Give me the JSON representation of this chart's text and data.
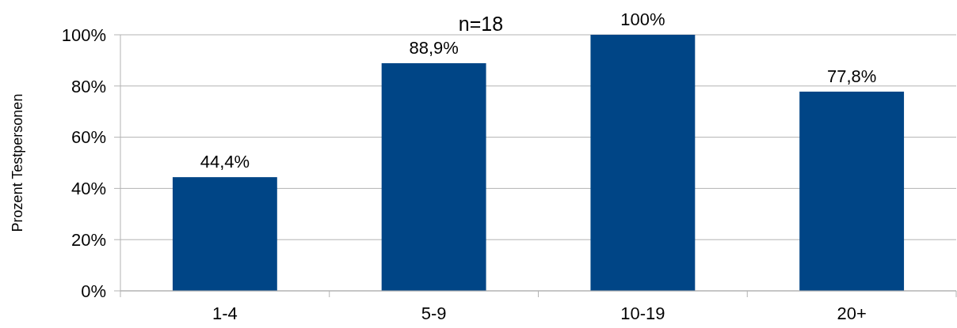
{
  "chart_data": {
    "type": "bar",
    "title": "n=18",
    "ylabel": "Prozent Testpersonen",
    "categories": [
      "1-4",
      "5-9",
      "10-19",
      "20+"
    ],
    "values": [
      44.4,
      88.9,
      100,
      77.8
    ],
    "value_labels": [
      "44,4%",
      "88,9%",
      "100%",
      "77,8%"
    ],
    "color": "#004586",
    "ylim": [
      0,
      100
    ],
    "yticks": [
      {
        "value": 0,
        "label": "0%"
      },
      {
        "value": 20,
        "label": "20%"
      },
      {
        "value": 40,
        "label": "40%"
      },
      {
        "value": 60,
        "label": "60%"
      },
      {
        "value": 80,
        "label": "80%"
      },
      {
        "value": 100,
        "label": "100%"
      }
    ],
    "grid": "y"
  }
}
